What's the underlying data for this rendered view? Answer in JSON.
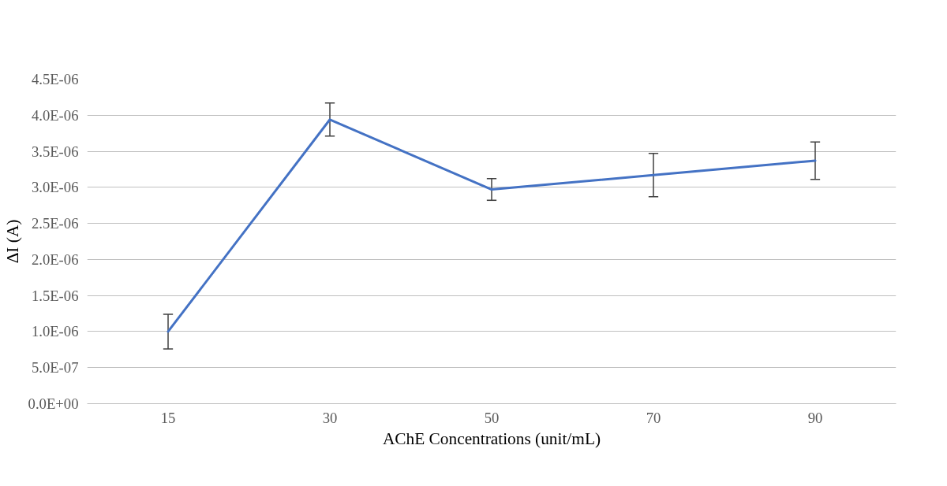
{
  "chart_data": {
    "type": "line",
    "xlabel": "AChE Concentrations (unit/mL)",
    "ylabel": "ΔI (A)",
    "categories": [
      "15",
      "30",
      "50",
      "70",
      "90"
    ],
    "series": [
      {
        "color": "#4472c4",
        "values": [
          1e-06,
          3.94e-06,
          2.97e-06,
          3.17e-06,
          3.37e-06
        ],
        "errors": [
          2.4e-07,
          2.3e-07,
          1.5e-07,
          3e-07,
          2.6e-07
        ]
      }
    ],
    "ylim": [
      0,
      4.5e-06
    ],
    "yticks": [
      {
        "value": 0,
        "label": "0.0E+00"
      },
      {
        "value": 5e-07,
        "label": "5.0E-07"
      },
      {
        "value": 1e-06,
        "label": "1.0E-06"
      },
      {
        "value": 1.5e-06,
        "label": "1.5E-06"
      },
      {
        "value": 2e-06,
        "label": "2.0E-06"
      },
      {
        "value": 2.5e-06,
        "label": "2.5E-06"
      },
      {
        "value": 3e-06,
        "label": "3.0E-06"
      },
      {
        "value": 3.5e-06,
        "label": "3.5E-06"
      },
      {
        "value": 4e-06,
        "label": "4.0E-06"
      },
      {
        "value": 4.5e-06,
        "label": "4.5E-06"
      }
    ],
    "grid": "y",
    "marker": "none",
    "line_style": "solid"
  }
}
